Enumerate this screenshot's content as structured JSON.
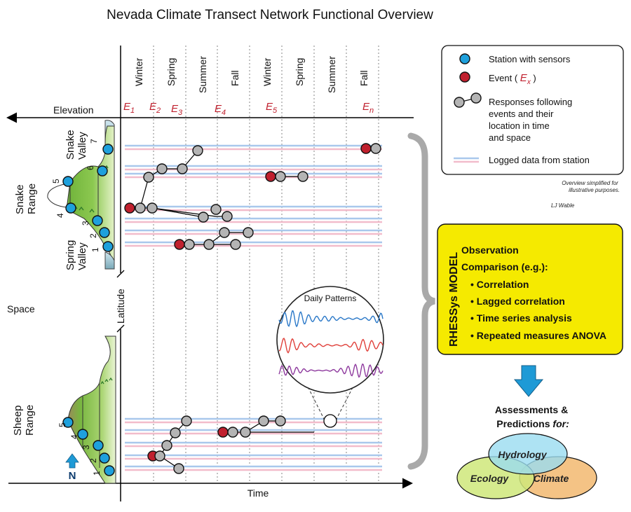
{
  "title": "Nevada Climate Transect Network Functional Overview",
  "axes": {
    "elevation": "Elevation",
    "time": "Time",
    "space": "Space",
    "latitude": "Latitude"
  },
  "seasons": [
    "Winter",
    "Spring",
    "Summer",
    "Fall",
    "Winter",
    "Spring",
    "Summer",
    "Fall"
  ],
  "events": [
    {
      "base": "E",
      "sub": "1"
    },
    {
      "base": "E",
      "sub": "2"
    },
    {
      "base": "E",
      "sub": "3"
    },
    {
      "base": "E",
      "sub": "4"
    },
    {
      "base": "E",
      "sub": "5"
    },
    {
      "base": "E",
      "sub": "n"
    }
  ],
  "snake": {
    "range_label": [
      "Snake",
      "Range"
    ],
    "snake_valley_label": [
      "Snake",
      "Valley"
    ],
    "spring_valley_label": [
      "Spring",
      "Valley"
    ],
    "station_numbers": [
      "7",
      "6",
      "5",
      "4",
      "3",
      "2",
      "1"
    ]
  },
  "sheep": {
    "range_label": [
      "Sheep",
      "Range"
    ],
    "station_numbers": [
      "5",
      "4",
      "3",
      "2",
      "1"
    ]
  },
  "north_label": "N",
  "legend": {
    "station": "Station with sensors",
    "event_prefix": "Event ( ",
    "event_base": "E",
    "event_sub": "x",
    "event_suffix": " )",
    "responses": [
      "Responses following",
      "events and their",
      "location in time",
      "and space"
    ],
    "logged": "Logged data from station"
  },
  "note": [
    "Overview simplified for",
    "illustrative purposes."
  ],
  "credit": "LJ Wable",
  "daily_patterns": "Daily Patterns",
  "model": {
    "name": "RHESSys MODEL",
    "observation": "Observation",
    "comparison": "Comparison (e.g.):",
    "bullets": [
      "Correlation",
      "Lagged correlation",
      "Time series analysis",
      "Repeated measures ANOVA"
    ]
  },
  "assessments": [
    "Assessments &",
    "Predictions "
  ],
  "assessments_for": "for:",
  "venn": [
    "Hydrology",
    "Ecology",
    "Climate"
  ],
  "colors": {
    "station": "#1ea0dc",
    "event": "#c0202e",
    "response": "#b4b4b4",
    "event_label": "#c0202e",
    "model_box": "#f5ea00",
    "arrow": "#1e9ad6",
    "hydrology": "#9adcf0",
    "ecology": "#cfe87a",
    "climate": "#f2b870",
    "trace_blue": "#2a78c8",
    "trace_red": "#e0403a",
    "trace_purple": "#8e3a9e",
    "terrain": "#8cc850"
  }
}
